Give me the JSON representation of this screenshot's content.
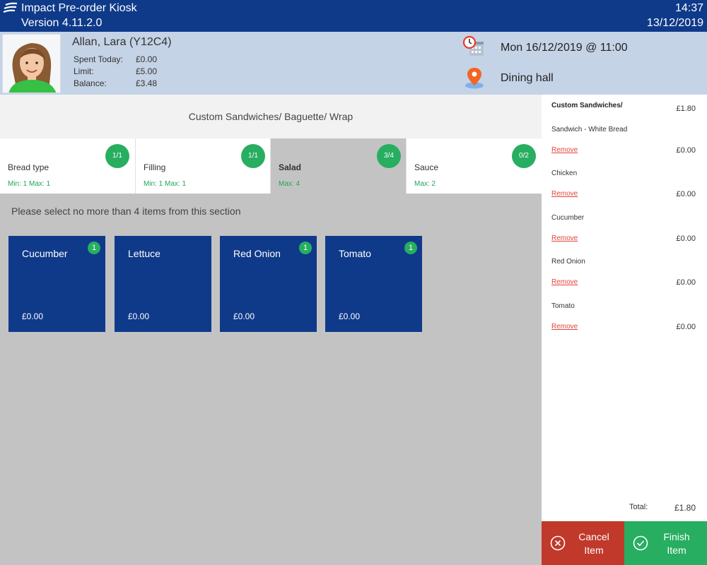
{
  "titlebar": {
    "app_title": "Impact Pre-order Kiosk",
    "version": "Version 4.11.2.0",
    "time": "14:37",
    "date": "13/12/2019"
  },
  "user": {
    "name": "Allan, Lara (Y12C4)",
    "spent_label": "Spent Today:",
    "spent_value": "£0.00",
    "limit_label": "Limit:",
    "limit_value": "£5.00",
    "balance_label": "Balance:",
    "balance_value": "£3.48",
    "schedule": "Mon 16/12/2019 @ 11:00",
    "location": "Dining hall"
  },
  "category": {
    "title": "Custom Sandwiches/ Baguette/ Wrap"
  },
  "tabs": [
    {
      "label": "Bread type",
      "rule": "Min: 1 Max: 1",
      "badge": "1/1"
    },
    {
      "label": "Filling",
      "rule": "Min: 1 Max: 1",
      "badge": "1/1"
    },
    {
      "label": "Salad",
      "rule": "Max: 4",
      "badge": "3/4"
    },
    {
      "label": "Sauce",
      "rule": "Max: 2",
      "badge": "0/2"
    }
  ],
  "instruction": "Please select no more than 4 items from this section",
  "items": [
    {
      "name": "Cucumber",
      "price": "£0.00",
      "count": "1"
    },
    {
      "name": "Lettuce",
      "price": "£0.00",
      "count": ""
    },
    {
      "name": "Red Onion",
      "price": "£0.00",
      "count": "1"
    },
    {
      "name": "Tomato",
      "price": "£0.00",
      "count": "1"
    }
  ],
  "basket": {
    "title": "Custom Sandwiches/",
    "title_price": "£1.80",
    "remove_label": "Remove",
    "lines": [
      {
        "name": "Sandwich - White Bread",
        "price": "£0.00"
      },
      {
        "name": "Chicken",
        "price": "£0.00"
      },
      {
        "name": "Cucumber",
        "price": "£0.00"
      },
      {
        "name": "Red Onion",
        "price": "£0.00"
      },
      {
        "name": "Tomato",
        "price": "£0.00"
      }
    ],
    "total_label": "Total:",
    "total_value": "£1.80"
  },
  "actions": {
    "cancel_line1": "Cancel",
    "cancel_line2": "Item",
    "finish_line1": "Finish",
    "finish_line2": "Item"
  },
  "colors": {
    "primary": "#0f3a8a",
    "accent_green": "#27ae60",
    "danger_red": "#c0392b",
    "userbar": "#c5d3e6"
  },
  "icons": {
    "logo": "stacked-lines-logo-icon",
    "schedule": "clock-calendar-icon",
    "location": "map-pin-icon",
    "cancel": "circle-x-icon",
    "finish": "circle-check-icon"
  }
}
